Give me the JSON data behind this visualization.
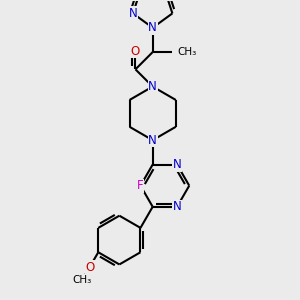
{
  "background_color": "#ebebeb",
  "bond_color": "#000000",
  "N_color": "#0000cc",
  "O_color": "#cc0000",
  "F_color": "#cc00cc",
  "line_width": 1.5,
  "fig_width": 3.0,
  "fig_height": 3.0,
  "dpi": 100,
  "xlim": [
    0,
    10
  ],
  "ylim": [
    0,
    10
  ]
}
